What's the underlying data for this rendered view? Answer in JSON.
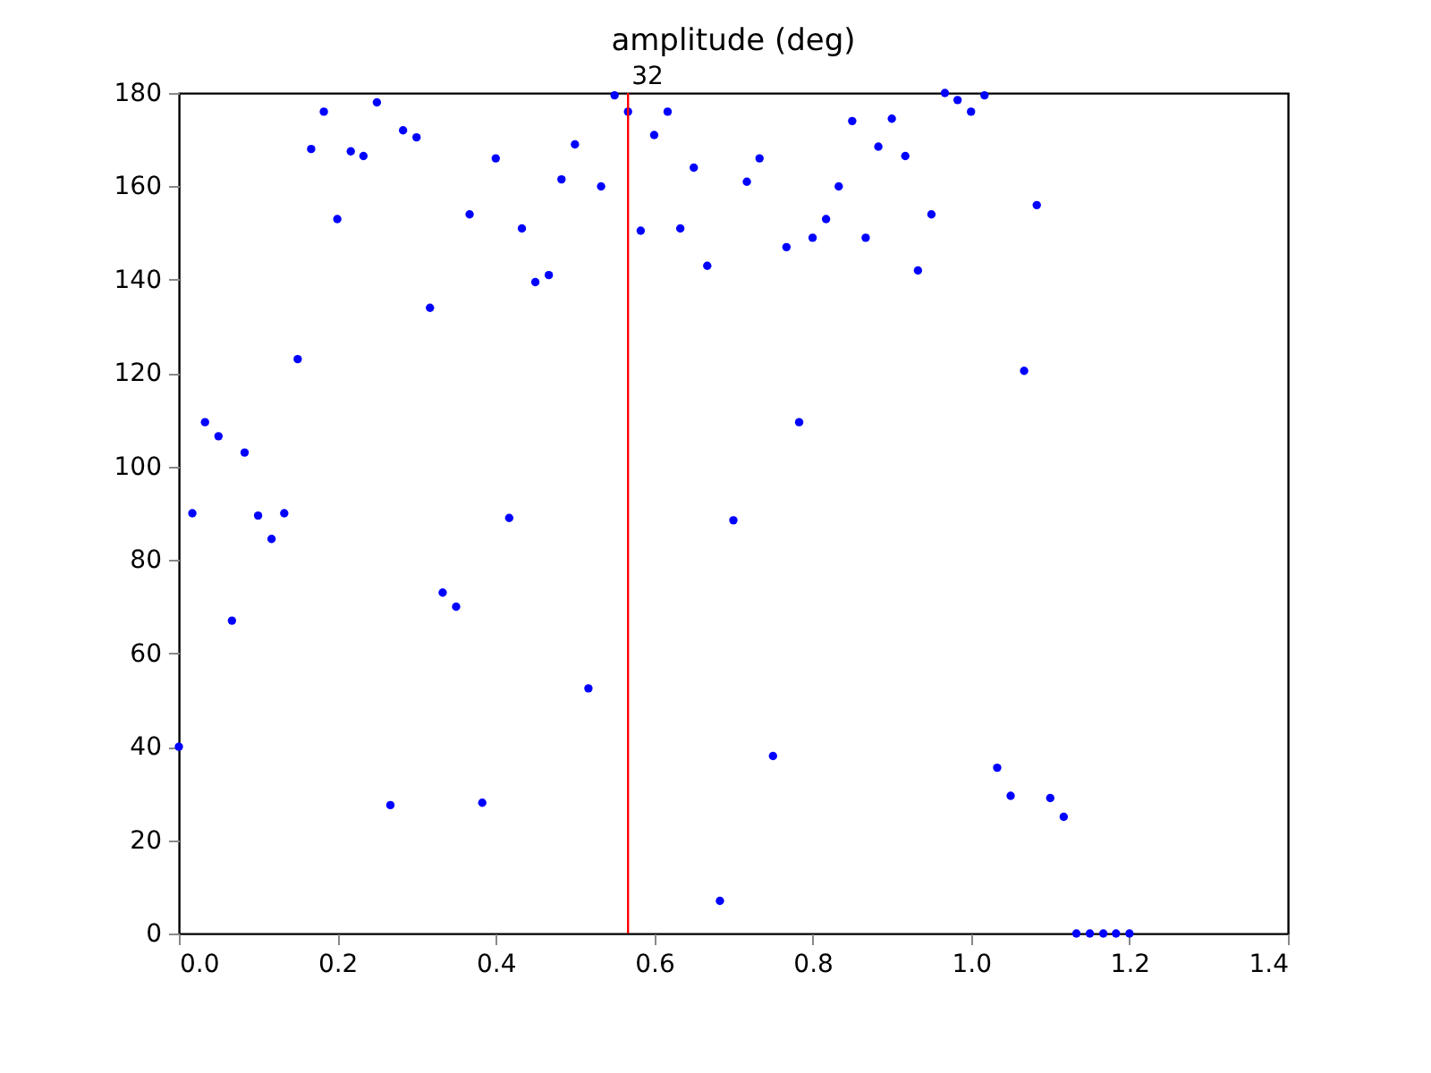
{
  "chart_data": {
    "type": "scatter",
    "title": "amplitude (deg)",
    "x": [
      0,
      0.017,
      0.033,
      0.05,
      0.067,
      0.083,
      0.1,
      0.117,
      0.133,
      0.15,
      0.167,
      0.183,
      0.2,
      0.217,
      0.233,
      0.25,
      0.267,
      0.283,
      0.3,
      0.317,
      0.333,
      0.35,
      0.367,
      0.383,
      0.4,
      0.417,
      0.433,
      0.45,
      0.467,
      0.483,
      0.5,
      0.517,
      0.533,
      0.55,
      0.567,
      0.583,
      0.6,
      0.617,
      0.633,
      0.65,
      0.667,
      0.683,
      0.7,
      0.717,
      0.733,
      0.75,
      0.767,
      0.783,
      0.8,
      0.817,
      0.833,
      0.85,
      0.867,
      0.883,
      0.9,
      0.917,
      0.933,
      0.95,
      0.967,
      0.983,
      1.0,
      1.017,
      1.033,
      1.05,
      1.067,
      1.083,
      1.1,
      1.117,
      1.133,
      1.15,
      1.167,
      1.183,
      1.2
    ],
    "series": [
      {
        "color": "#0000ff",
        "values": [
          40,
          90,
          109.5,
          106.5,
          67,
          103,
          89.5,
          84.5,
          90,
          123,
          168,
          176,
          153,
          167.5,
          166.5,
          178,
          27.5,
          172,
          170.5,
          134,
          73,
          70,
          154,
          28,
          166,
          89,
          151,
          139.5,
          141,
          161.5,
          169,
          52.5,
          160,
          179.5,
          176,
          150.5,
          171,
          176,
          151,
          164,
          143,
          7,
          88.5,
          161,
          166,
          38,
          147,
          109.5,
          149,
          153,
          160,
          174,
          149,
          168.5,
          174.5,
          166.5,
          142,
          154,
          180,
          178.5,
          176,
          179.5,
          35.5,
          29.5,
          120.5,
          156,
          29,
          25,
          0,
          0,
          0,
          0,
          0
        ]
      }
    ],
    "xlim": [
      0,
      1.4
    ],
    "ylim": [
      0,
      180
    ],
    "xticks": [
      {
        "value": 0,
        "label": "0.0"
      },
      {
        "value": 0.2,
        "label": "0.2"
      },
      {
        "value": 0.4,
        "label": "0.4"
      },
      {
        "value": 0.6,
        "label": "0.6"
      },
      {
        "value": 0.8,
        "label": "0.8"
      },
      {
        "value": 1.0,
        "label": "1.0"
      },
      {
        "value": 1.2,
        "label": "1.2"
      },
      {
        "value": 1.4,
        "label": "1.4"
      }
    ],
    "yticks": [
      0,
      20,
      40,
      60,
      80,
      100,
      120,
      140,
      160,
      180
    ],
    "ref_lines": [
      {
        "axis": "x",
        "value": 0.567,
        "color": "#ff0000"
      }
    ],
    "annotations": [
      {
        "text": "32",
        "x": 0.567,
        "y": 180
      }
    ],
    "grid": false,
    "marker": "circle"
  }
}
